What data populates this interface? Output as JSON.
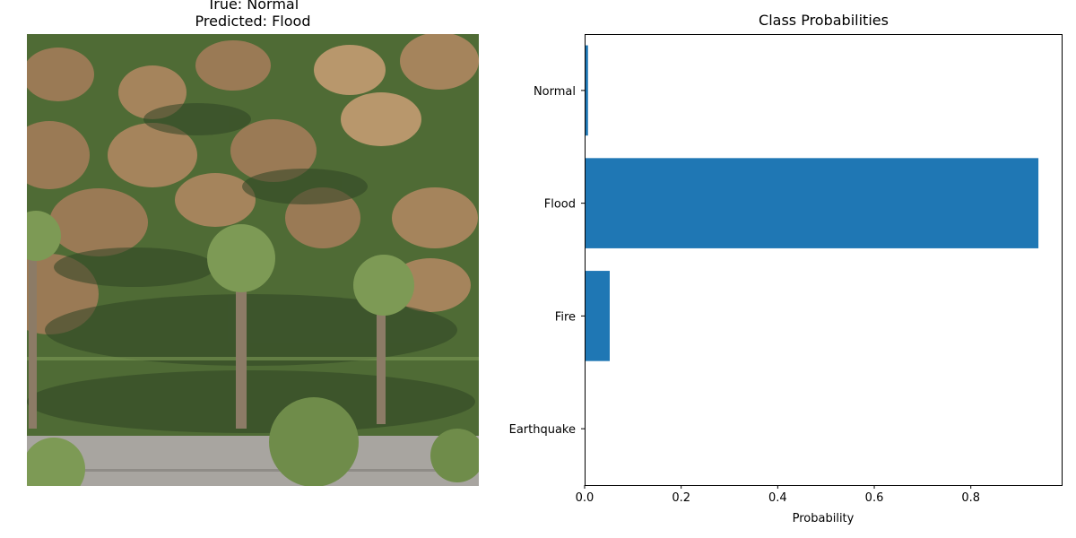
{
  "image_panel": {
    "title_true": "True: Normal",
    "title_predicted": "Predicted: Flood",
    "colors": {
      "mound": "#9a7a55",
      "mound_light": "#b8976c",
      "vegetation": "#4f6b35",
      "vegetation_dark": "#2f4424",
      "vegetation_light": "#7d9a55",
      "path": "#a8a5a0",
      "trunk": "#8c7b66"
    }
  },
  "chart_data": {
    "type": "bar",
    "orientation": "horizontal",
    "title": "Class Probabilities",
    "xlabel": "Probability",
    "ylabel": "",
    "categories": [
      "Earthquake",
      "Fire",
      "Flood",
      "Normal"
    ],
    "values": [
      0.0,
      0.052,
      0.94,
      0.007
    ],
    "xlim": [
      0,
      0.99
    ],
    "xticks": [
      0.0,
      0.2,
      0.4,
      0.6,
      0.8
    ],
    "xtick_labels": [
      "0.0",
      "0.2",
      "0.4",
      "0.6",
      "0.8"
    ],
    "bar_color": "#1f77b4",
    "grid": false
  }
}
